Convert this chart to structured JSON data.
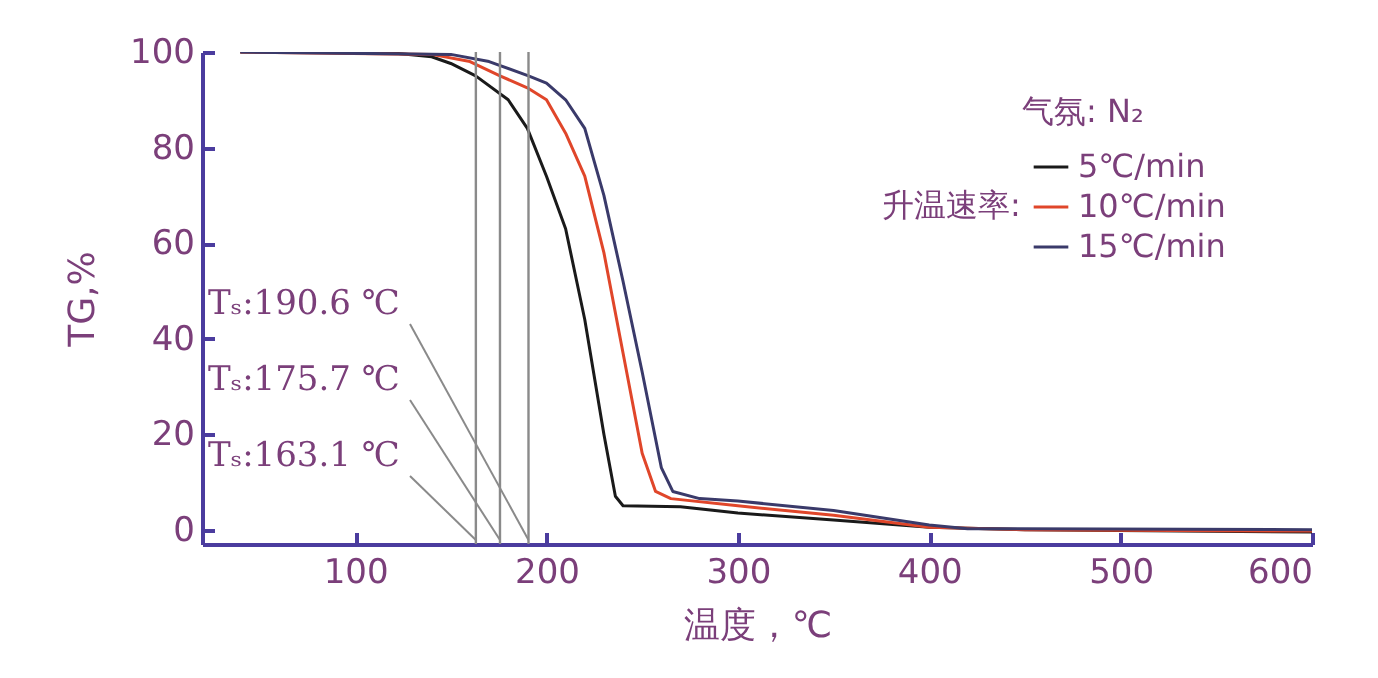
{
  "chart_data": {
    "type": "line",
    "xlabel": "温度，℃",
    "ylabel": "TG,%",
    "legend_title": "升温速率:",
    "annotations": [
      "气氛: N₂"
    ],
    "xlim": [
      20,
      600
    ],
    "xticks": [
      100,
      200,
      300,
      400,
      500,
      600
    ],
    "ylim": [
      -3,
      100
    ],
    "yticks": [
      0,
      20,
      40,
      60,
      80,
      100
    ],
    "legend": "top right",
    "grid": false,
    "ref_lines": [
      {
        "axis": "x",
        "value": 163.1,
        "label": "Tₛ:163.1 ℃",
        "color": "#8a8a8a"
      },
      {
        "axis": "x",
        "value": 175.7,
        "label": "Tₛ:175.7 ℃",
        "color": "#8a8a8a"
      },
      {
        "axis": "x",
        "value": 190.6,
        "label": "Tₛ:190.6 ℃",
        "color": "#8a8a8a"
      }
    ],
    "series": [
      {
        "name": "5℃/min",
        "color": "#1a1a1a",
        "x": [
          40,
          120,
          140,
          150,
          163,
          180,
          190,
          200,
          210,
          220,
          230,
          236,
          240,
          270,
          300,
          350,
          400,
          450,
          600
        ],
        "values": [
          100,
          99.8,
          99,
          97.6,
          95,
          90,
          84,
          74,
          63,
          44,
          20,
          7,
          5,
          4.8,
          3.5,
          2,
          0.5,
          0,
          -0.5
        ]
      },
      {
        "name": "10℃/min",
        "color": "#e0462a",
        "x": [
          40,
          140,
          160,
          175.7,
          190,
          200,
          210,
          220,
          230,
          240,
          250,
          257,
          265,
          300,
          350,
          400,
          450,
          600
        ],
        "values": [
          100,
          99.5,
          98,
          95,
          92.5,
          90,
          83,
          74,
          58,
          37,
          16,
          8,
          6.5,
          5,
          3,
          0.5,
          0,
          -0.3
        ]
      },
      {
        "name": "15℃/min",
        "color": "#3a3a6a",
        "x": [
          40,
          150,
          170,
          190.6,
          200,
          210,
          220,
          230,
          240,
          250,
          260,
          266,
          280,
          300,
          350,
          400,
          420,
          600
        ],
        "values": [
          100,
          99.5,
          98,
          95,
          93.5,
          90,
          84,
          70,
          52,
          33,
          13,
          8,
          6.5,
          6,
          4,
          1,
          0.2,
          0
        ]
      }
    ]
  }
}
